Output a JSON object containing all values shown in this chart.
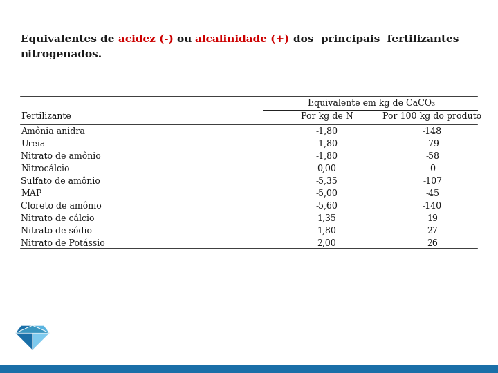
{
  "title_segments_line1": [
    {
      "text": "Equivalentes de ",
      "color": "#1a1a1a"
    },
    {
      "text": "acidez (-) ",
      "color": "#cc0000"
    },
    {
      "text": "ou ",
      "color": "#1a1a1a"
    },
    {
      "text": "alcalinidade (+) ",
      "color": "#cc0000"
    },
    {
      "text": "dos  principais  fertilizantes",
      "color": "#1a1a1a"
    }
  ],
  "title_line2": "nitrogenados.",
  "header_top": "Equivalente em kg de CaCO₃",
  "col_headers": [
    "Fertilizante",
    "Por kg de N",
    "Por 100 kg do produto"
  ],
  "rows": [
    [
      "Amônia anidra",
      "-1,80",
      "-148"
    ],
    [
      "Ureia",
      "-1,80",
      "-79"
    ],
    [
      "Nitrato de amônio",
      "-1,80",
      "-58"
    ],
    [
      "Nitrocálcio",
      "0,00",
      "0"
    ],
    [
      "Sulfato de amônio",
      "-5,35",
      "-107"
    ],
    [
      "MAP",
      "-5,00",
      "-45"
    ],
    [
      "Cloreto de amônio",
      "-5,60",
      "-140"
    ],
    [
      "Nitrato de cálcio",
      "1,35",
      "19"
    ],
    [
      "Nitrato de sódio",
      "1,80",
      "27"
    ],
    [
      "Nitrato de Potássio",
      "2,00",
      "26"
    ]
  ],
  "background_color": "#ffffff",
  "line_color": "#1a1a1a",
  "text_color": "#1a1a1a",
  "title_fontsize": 11.0,
  "table_fontsize": 9.0,
  "bottom_bar_color": "#1a6fa8",
  "logo_colors": [
    "#5ab4e0",
    "#1a6fa8",
    "#5ab4e0",
    "#1a6fa8",
    "#7ecaee",
    "#3a96c0"
  ]
}
